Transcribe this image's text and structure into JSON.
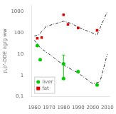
{
  "chart_data": {
    "type": "scatter",
    "ylabel": "p,p'-DDE ng/g ww",
    "series": [
      {
        "type": "line",
        "line_style": "dashdot",
        "color": "#333333",
        "x": [
          1960,
          1963,
          1968,
          1980,
          1985,
          1993,
          2003,
          2010
        ],
        "values": [
          70,
          80,
          200,
          350,
          280,
          150,
          80,
          1000
        ]
      },
      {
        "type": "line",
        "line_style": "dashdot",
        "color": "#333333",
        "x": [
          1960,
          1964,
          1972,
          1980,
          1990,
          2000,
          2005,
          2010
        ],
        "values": [
          45,
          20,
          8,
          3,
          1.3,
          0.4,
          0.5,
          10
        ]
      },
      {
        "type": "scatter",
        "name": "liver",
        "marker": "circle",
        "color": "#00cc00",
        "x": [
          1962,
          1964,
          1980,
          1980,
          1990,
          2003
        ],
        "values": [
          25,
          5.5,
          3.5,
          0.7,
          1.5,
          0.35
        ],
        "yerr_minus": [
          null,
          null,
          2.8,
          null,
          null,
          null
        ],
        "yerr_plus": [
          null,
          null,
          5.5,
          null,
          null,
          null
        ]
      },
      {
        "type": "scatter",
        "name": "fat",
        "marker": "square",
        "color": "#dd0000",
        "x": [
          1962,
          1965,
          1980,
          1983,
          1990,
          2003
        ],
        "values": [
          55,
          60,
          700,
          250,
          170,
          130
        ]
      }
    ],
    "xlim": [
      1958,
      2012
    ],
    "xticks": [
      1960,
      1970,
      1980,
      1990,
      2000,
      2010
    ],
    "ylim": [
      0.1,
      2000
    ],
    "yticks": [
      0.1,
      1,
      10,
      100,
      1000
    ],
    "log": "y",
    "grid": false,
    "legend": "lower left"
  }
}
